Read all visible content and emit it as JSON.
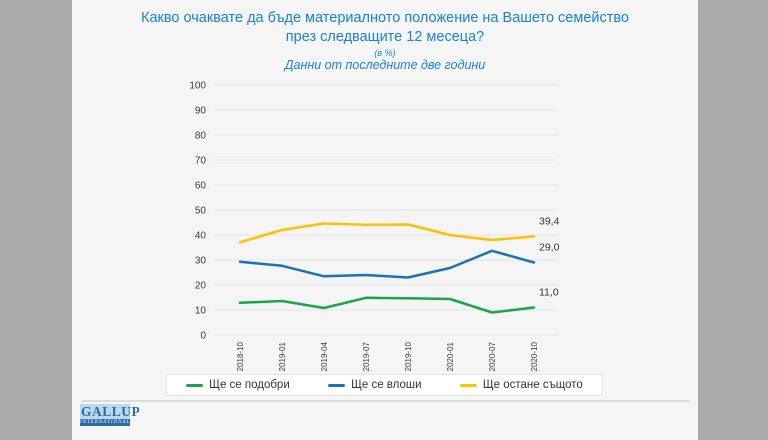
{
  "title": "Какво очаквате да бъде материалното положение на Вашето семейство през следващите 12 месеца?",
  "subtitle_percent": "(в %)",
  "subtitle_note": "Данни от последните две години",
  "logo": {
    "brand": "GALLUP",
    "brand_sub": "INTERNATIONAL"
  },
  "colors": {
    "outer_background": "#ababab",
    "slide_background": "#f4f5f4",
    "title_blue": "#1b80d6",
    "gridline": "#e2e2e2",
    "axis_text": "#3c3c3c"
  },
  "chart_data": {
    "type": "line",
    "categories": [
      "2018-10",
      "2019-01",
      "2019-04",
      "2019-07",
      "2019-10",
      "2020-01",
      "2020-07",
      "2020-10"
    ],
    "series": [
      {
        "name": "Ще се подобри",
        "color": "#1aa44c",
        "values": [
          12.9,
          13.6,
          10.8,
          14.9,
          14.7,
          14.4,
          9.0,
          11.0
        ],
        "end_label": "11,0"
      },
      {
        "name": "Ще се влоши",
        "color": "#1d6fc2",
        "values": [
          29.3,
          27.7,
          23.5,
          24.0,
          23.0,
          26.8,
          33.7,
          29.0
        ],
        "end_label": "29,0"
      },
      {
        "name": "Ще остане същото",
        "color": "#fdc005",
        "values": [
          37.1,
          42.0,
          44.6,
          44.1,
          44.2,
          40.0,
          38.0,
          39.4
        ],
        "end_label": "39,4"
      }
    ],
    "title": "Какво очаквате да бъде материалното положение на Вашето семейство през следващите 12 месеца?",
    "xlabel": "",
    "ylabel": "",
    "ylim": [
      0,
      100
    ],
    "ytick_step": 10,
    "grid": true,
    "legend_position": "bottom"
  }
}
